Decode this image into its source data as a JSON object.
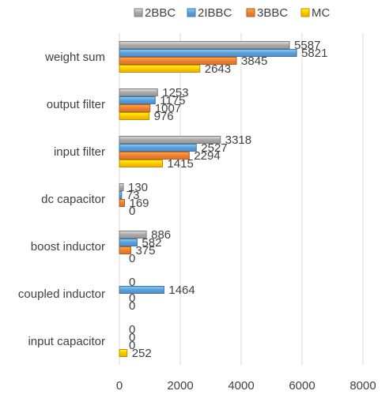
{
  "chart_data": {
    "type": "bar",
    "orientation": "horizontal",
    "categories": [
      "weight sum",
      "output filter",
      "input filter",
      "dc capacitor",
      "boost inductor",
      "coupled inductor",
      "input capacitor"
    ],
    "series": [
      {
        "name": "2BBC",
        "color": "#a5a5a5",
        "values": [
          5587,
          1253,
          3318,
          130,
          886,
          0,
          0
        ]
      },
      {
        "name": "2IBBC",
        "color": "#5b9bd5",
        "values": [
          5821,
          1175,
          2527,
          73,
          582,
          1464,
          0
        ]
      },
      {
        "name": "3BBC",
        "color": "#ed7d31",
        "values": [
          3845,
          1007,
          2294,
          169,
          375,
          0,
          0
        ]
      },
      {
        "name": "MC",
        "color": "#ffc000",
        "values": [
          2643,
          976,
          1415,
          0,
          0,
          0,
          252
        ]
      }
    ],
    "xlim": [
      0,
      8000
    ],
    "xticks": [
      0,
      2000,
      4000,
      6000,
      8000
    ],
    "grid": true,
    "legend_position": "top",
    "title": "",
    "xlabel": "",
    "ylabel": ""
  }
}
